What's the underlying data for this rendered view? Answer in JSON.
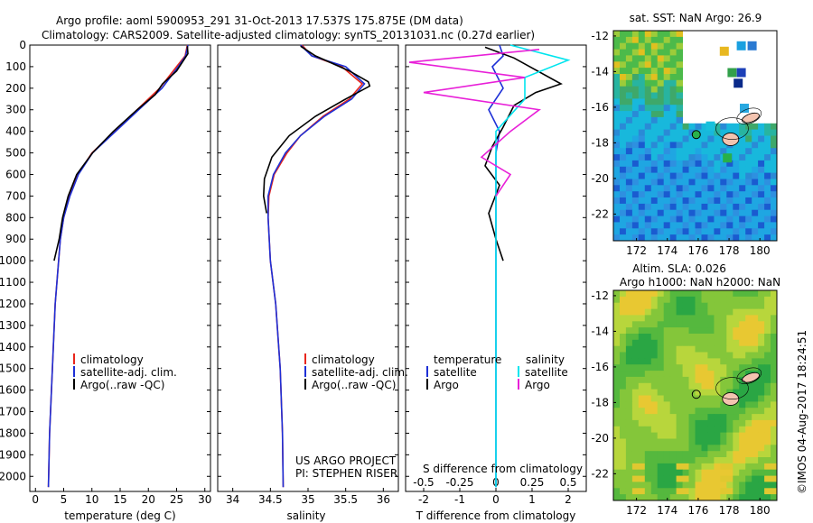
{
  "header": {
    "line1": "Argo profile: aoml 5900953_291 31-Oct-2013 17.537S 175.875E (DM data)",
    "line2": "Climatology: CARS2009. Satellite-adjusted climatology: synTS_20131031.nc (0.27d earlier)"
  },
  "colors": {
    "climatology": "#e8261c",
    "satellite": "#1d2fd6",
    "argo": "#000000",
    "salinity_satellite": "#00e5ee",
    "salinity_argo": "#e820d8"
  },
  "chart_data": [
    {
      "id": "temperature",
      "type": "line",
      "xlabel": "temperature (deg C)",
      "ylabel": "",
      "xlim": [
        -1,
        31
      ],
      "ylim": [
        2070,
        0
      ],
      "xticks": [
        "0",
        "5",
        "10",
        "15",
        "20",
        "25",
        "30"
      ],
      "yticks": [
        "0",
        "100",
        "200",
        "300",
        "400",
        "500",
        "600",
        "700",
        "800",
        "900",
        "1000",
        "1100",
        "1200",
        "1300",
        "1400",
        "1500",
        "1600",
        "1700",
        "1800",
        "1900",
        "2000"
      ],
      "legend": [
        "climatology",
        "satellite-adj. clim.",
        "Argo(..raw -QC)"
      ],
      "series": [
        {
          "name": "climatology",
          "color": "#e8261c",
          "x": [
            26.9,
            26.5,
            25,
            22,
            18,
            14,
            10,
            7.5,
            6,
            5,
            4.4,
            3.5,
            3,
            2.5,
            2.3
          ],
          "y": [
            0,
            50,
            100,
            200,
            300,
            400,
            500,
            600,
            700,
            800,
            900,
            1200,
            1500,
            1800,
            2050
          ]
        },
        {
          "name": "satellite-adj. clim.",
          "color": "#1d2fd6",
          "x": [
            27,
            26.6,
            25.3,
            22.4,
            18.3,
            14.2,
            10.1,
            7.6,
            6.1,
            5,
            4.4,
            3.5,
            3,
            2.5,
            2.3
          ],
          "y": [
            0,
            50,
            100,
            200,
            300,
            400,
            500,
            600,
            700,
            800,
            900,
            1200,
            1500,
            1800,
            2050
          ]
        },
        {
          "name": "Argo(..raw -QC)",
          "color": "#000000",
          "x": [
            26.9,
            27,
            25,
            22.5,
            21.2,
            18,
            13.8,
            10.1,
            7.3,
            5.8,
            4.8,
            4.2,
            3.3
          ],
          "y": [
            5,
            40,
            120,
            180,
            230,
            300,
            400,
            500,
            600,
            700,
            800,
            900,
            1000
          ]
        }
      ]
    },
    {
      "id": "salinity",
      "type": "line",
      "xlabel": "salinity",
      "ylabel": "",
      "xlim": [
        33.8,
        36.2
      ],
      "ylim": [
        2070,
        0
      ],
      "xticks": [
        "34",
        "34.5",
        "35",
        "35.5",
        "36"
      ],
      "legend": [
        "climatology",
        "satellite-adj. clim.",
        "Argo(..raw -QC)"
      ],
      "annotation": [
        "US ARGO PROJECT",
        "PI: STEPHEN RISER"
      ],
      "series": [
        {
          "name": "climatology",
          "color": "#e8261c",
          "x": [
            34.92,
            35.05,
            35.45,
            35.72,
            35.55,
            35.2,
            34.9,
            34.72,
            34.55,
            34.48,
            34.47,
            34.5,
            34.57,
            34.63,
            34.66,
            34.67
          ],
          "y": [
            0,
            50,
            100,
            180,
            250,
            330,
            420,
            500,
            600,
            700,
            800,
            1000,
            1200,
            1500,
            1800,
            2050
          ]
        },
        {
          "name": "satellite-adj. clim.",
          "color": "#1d2fd6",
          "x": [
            34.9,
            35.05,
            35.5,
            35.75,
            35.58,
            35.22,
            34.9,
            34.7,
            34.54,
            34.47,
            34.47,
            34.5,
            34.57,
            34.63,
            34.66,
            34.67
          ],
          "y": [
            0,
            50,
            100,
            180,
            250,
            330,
            420,
            500,
            600,
            700,
            800,
            1000,
            1200,
            1500,
            1800,
            2050
          ]
        },
        {
          "name": "Argo(..raw -QC)",
          "color": "#000000",
          "x": [
            34.9,
            35.1,
            35.55,
            35.8,
            35.82,
            35.5,
            35.1,
            34.75,
            34.52,
            34.42,
            34.41,
            34.45
          ],
          "y": [
            5,
            50,
            120,
            170,
            190,
            250,
            330,
            420,
            520,
            620,
            700,
            780
          ]
        }
      ]
    },
    {
      "id": "difference",
      "type": "line",
      "xlabel": "T difference from climatology",
      "top_label": "S difference from climatology",
      "xlim": [
        -2.5,
        2.5
      ],
      "ylim": [
        2070,
        0
      ],
      "xticks": [
        "-2",
        "-1",
        "0",
        "1",
        "2"
      ],
      "sticks": [
        "-0.5",
        "-0.25",
        "0",
        "0.25",
        "0.5"
      ],
      "legend_left": [
        "temperature",
        "satellite",
        "Argo"
      ],
      "legend_right": [
        "salinity",
        "satellite",
        "Argo"
      ],
      "series": [
        {
          "name": "temperature satellite",
          "color": "#1d2fd6",
          "x": [
            0.1,
            0.2,
            -0.1,
            0.2,
            -0.2,
            0.1,
            0,
            0,
            0,
            0
          ],
          "y": [
            0,
            50,
            100,
            200,
            300,
            400,
            500,
            700,
            1000,
            2050
          ]
        },
        {
          "name": "temperature Argo",
          "color": "#000000",
          "x": [
            -0.3,
            0.5,
            1.8,
            1.1,
            0.5,
            0.2,
            -0.1,
            -0.3,
            0.1,
            -0.2,
            0,
            0.2
          ],
          "y": [
            10,
            60,
            180,
            220,
            280,
            380,
            470,
            560,
            650,
            780,
            900,
            1000
          ]
        },
        {
          "name": "salinity satellite",
          "color": "#00e5ee",
          "x": [
            0.1,
            0.5,
            0.2,
            0.2,
            0,
            0,
            0
          ],
          "y": [
            0,
            70,
            150,
            250,
            400,
            700,
            2050
          ]
        },
        {
          "name": "salinity Argo",
          "color": "#e820d8",
          "x": [
            0.3,
            -0.6,
            0.2,
            -0.5,
            0.3,
            0.1,
            -0.1,
            0.1,
            0
          ],
          "y": [
            20,
            80,
            150,
            220,
            300,
            400,
            520,
            600,
            700
          ]
        }
      ]
    },
    {
      "id": "sst-map",
      "type": "heatmap",
      "title": "sat. SST: NaN Argo: 26.9",
      "xticks": [
        "172",
        "174",
        "176",
        "178",
        "180"
      ],
      "yticks": [
        "-12",
        "-14",
        "-16",
        "-18",
        "-20",
        "-22"
      ],
      "xlim": [
        170.5,
        181.1
      ],
      "ylim": [
        -23.5,
        -11.7
      ],
      "argo_position": [
        175.875,
        -17.537
      ]
    },
    {
      "id": "sla-map",
      "type": "heatmap",
      "title_line1": "Altim. SLA: 0.026",
      "title_line2": "Argo h1000: NaN h2000: NaN",
      "xticks": [
        "172",
        "174",
        "176",
        "178",
        "180"
      ],
      "yticks": [
        "-12",
        "-14",
        "-16",
        "-18",
        "-20",
        "-22"
      ],
      "xlim": [
        170.5,
        181.1
      ],
      "ylim": [
        -23.5,
        -11.7
      ],
      "argo_position": [
        175.875,
        -17.537
      ]
    }
  ],
  "credit": "©IMOS 04-Aug-2017 18:24:51"
}
